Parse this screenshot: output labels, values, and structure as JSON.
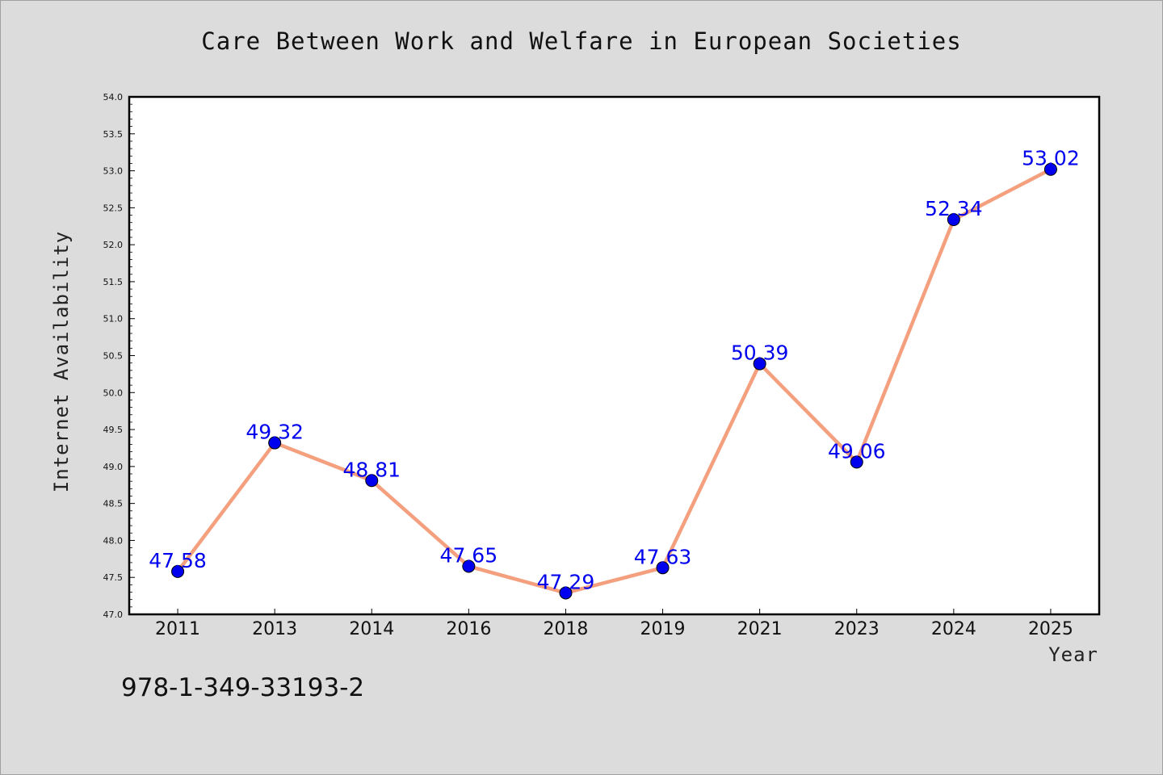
{
  "chart_data": {
    "type": "line",
    "title": "Care Between Work and Welfare in European Societies",
    "xlabel": "Year",
    "ylabel": "Internet Availability",
    "categories": [
      "2011",
      "2013",
      "2014",
      "2016",
      "2018",
      "2019",
      "2021",
      "2023",
      "2024",
      "2025"
    ],
    "values": [
      47.58,
      49.32,
      48.81,
      47.65,
      47.29,
      47.63,
      50.39,
      49.06,
      52.34,
      53.02
    ],
    "data_labels": [
      "47.58",
      "49.32",
      "48.81",
      "47.65",
      "47.29",
      "47.63",
      "50.39",
      "49.06",
      "52.34",
      "53.02"
    ],
    "ylim": [
      47.0,
      54.0
    ],
    "y_ticks": [
      "47.0",
      "47.5",
      "48.0",
      "48.5",
      "49.0",
      "49.5",
      "50.0",
      "50.5",
      "51.0",
      "51.5",
      "52.0",
      "52.5",
      "53.0",
      "53.5",
      "54.0"
    ],
    "grid": false,
    "legend": "none",
    "line_color": "#f4a07e",
    "marker_color": "#0000ee",
    "label_color": "#0000ee"
  },
  "footer": {
    "isbn": "978-1-349-33193-2"
  }
}
